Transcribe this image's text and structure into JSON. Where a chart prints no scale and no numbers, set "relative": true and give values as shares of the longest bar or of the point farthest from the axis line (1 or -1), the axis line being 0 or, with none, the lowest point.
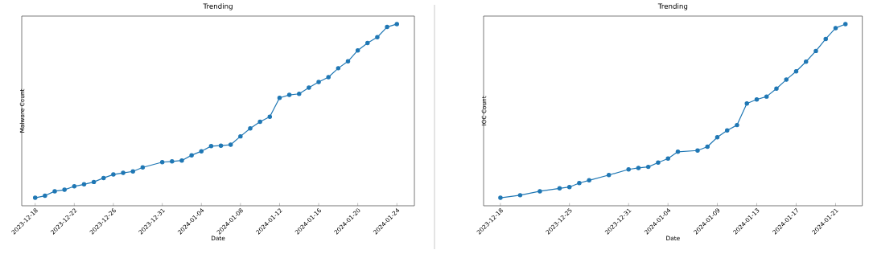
{
  "chart_data": [
    {
      "type": "line",
      "title": "Trending",
      "xlabel": "Date",
      "ylabel": "Malware Count",
      "relative": true,
      "marker": "circle",
      "line_style": "solid",
      "xlim": [
        "2023-12-16T15:00",
        "2024-01-25T19:00"
      ],
      "xticks": [
        "2023-12-18",
        "2023-12-22",
        "2023-12-26",
        "2023-12-31",
        "2024-01-04",
        "2024-01-08",
        "2024-01-12",
        "2024-01-16",
        "2024-01-20",
        "2024-01-24"
      ],
      "x": [
        "2023-12-18",
        "2023-12-19",
        "2023-12-20",
        "2023-12-21",
        "2023-12-22",
        "2023-12-23",
        "2023-12-24",
        "2023-12-25",
        "2023-12-26",
        "2023-12-27",
        "2023-12-28",
        "2023-12-29",
        "2023-12-31",
        "2024-01-01",
        "2024-01-02",
        "2024-01-03",
        "2024-01-04",
        "2024-01-05",
        "2024-01-06",
        "2024-01-07",
        "2024-01-08",
        "2024-01-09",
        "2024-01-10",
        "2024-01-11",
        "2024-01-12",
        "2024-01-13",
        "2024-01-14",
        "2024-01-15",
        "2024-01-16",
        "2024-01-17",
        "2024-01-18",
        "2024-01-19",
        "2024-01-20",
        "2024-01-21",
        "2024-01-22",
        "2024-01-23",
        "2024-01-24"
      ],
      "series": [
        {
          "color": "#1f77b4",
          "values": [
            0.044,
            0.055,
            0.08,
            0.088,
            0.107,
            0.118,
            0.131,
            0.153,
            0.172,
            0.181,
            0.189,
            0.211,
            0.24,
            0.244,
            0.249,
            0.278,
            0.3,
            0.328,
            0.331,
            0.336,
            0.382,
            0.426,
            0.462,
            0.49,
            0.594,
            0.61,
            0.616,
            0.65,
            0.681,
            0.708,
            0.757,
            0.795,
            0.855,
            0.896,
            0.928,
            0.984,
            1
          ]
        }
      ]
    },
    {
      "type": "line",
      "title": "Trending",
      "xlabel": "Date",
      "ylabel": "IOC Count",
      "relative": true,
      "marker": "circle",
      "line_style": "solid",
      "xlim": [
        "2023-12-16T07:00",
        "2024-01-23T17:00"
      ],
      "xticks": [
        "2023-12-18",
        "2023-12-25",
        "2023-12-31",
        "2024-01-04",
        "2024-01-09",
        "2024-01-13",
        "2024-01-17",
        "2024-01-21"
      ],
      "x": [
        "2023-12-18",
        "2023-12-20",
        "2023-12-22",
        "2023-12-24",
        "2023-12-25",
        "2023-12-26",
        "2023-12-27",
        "2023-12-29",
        "2023-12-31",
        "2024-01-01",
        "2024-01-02",
        "2024-01-03",
        "2024-01-04",
        "2024-01-05",
        "2024-01-07",
        "2024-01-08",
        "2024-01-09",
        "2024-01-10",
        "2024-01-11",
        "2024-01-12",
        "2024-01-13",
        "2024-01-14",
        "2024-01-15",
        "2024-01-16",
        "2024-01-17",
        "2024-01-18",
        "2024-01-19",
        "2024-01-20",
        "2024-01-21",
        "2024-01-22"
      ],
      "series": [
        {
          "color": "#1f77b4",
          "values": [
            0.044,
            0.058,
            0.08,
            0.096,
            0.103,
            0.125,
            0.14,
            0.169,
            0.2,
            0.208,
            0.214,
            0.238,
            0.26,
            0.297,
            0.304,
            0.325,
            0.377,
            0.415,
            0.444,
            0.563,
            0.585,
            0.601,
            0.645,
            0.694,
            0.74,
            0.793,
            0.852,
            0.918,
            0.978,
            1
          ]
        }
      ]
    }
  ]
}
